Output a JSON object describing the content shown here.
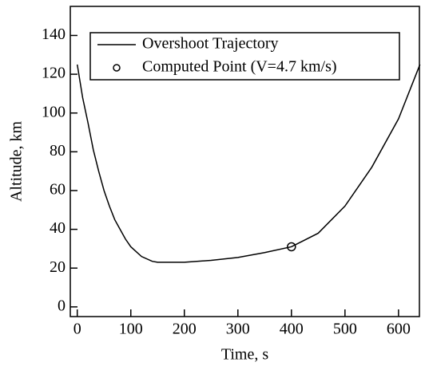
{
  "chart_data": {
    "type": "line",
    "xlabel": "Time, s",
    "ylabel": "Altitude, km",
    "xlim": [
      -13,
      639
    ],
    "ylim": [
      -5,
      155
    ],
    "xticks": [
      0,
      100,
      200,
      300,
      400,
      500,
      600
    ],
    "yticks": [
      0,
      20,
      40,
      60,
      80,
      100,
      120,
      140
    ],
    "legend": "top",
    "series": [
      {
        "name": "Overshoot Trajectory",
        "color": "#000000",
        "x": [
          0,
          10,
          20,
          30,
          40,
          50,
          60,
          70,
          80,
          90,
          100,
          120,
          140,
          150,
          200,
          250,
          300,
          350,
          400,
          450,
          500,
          550,
          600,
          640
        ],
        "values": [
          125,
          108,
          95,
          81,
          70,
          60,
          52,
          45,
          40,
          35,
          31,
          26,
          23.5,
          23,
          23,
          24,
          25.5,
          28,
          31,
          38,
          52,
          72,
          97,
          125
        ]
      },
      {
        "name": "Computed Point (V=4.7 km/s)",
        "color": "#000000",
        "marker": "circle",
        "x": [
          400
        ],
        "values": [
          31
        ]
      }
    ]
  }
}
